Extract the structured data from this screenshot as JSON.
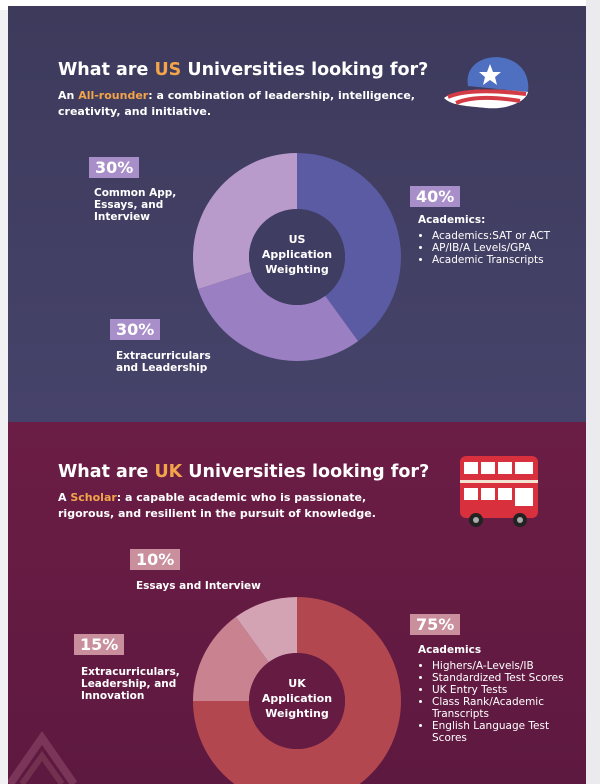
{
  "us": {
    "heading_pre": "What are ",
    "heading_hl": "US",
    "heading_post": " Universities looking for?",
    "lead_hl": "All-rounder",
    "lead_pre": "An ",
    "lead_post": ": a combination of leadership, intelligence, creativity, and initiative.",
    "center": [
      "US",
      "Application",
      "Weighting"
    ],
    "academics_heading": "Academics:",
    "academics_bullets": [
      "Academics:SAT or ACT",
      "AP/IB/A Levels/GPA",
      "Academic Transcripts"
    ],
    "common_app_label": "Common App, Essays, and Interview",
    "extracurricular_label": "Extracurriculars and Leadership",
    "hat_icon": "baseball-cap-icon"
  },
  "uk": {
    "heading_pre": "What are ",
    "heading_hl": "UK",
    "heading_post": " Universities looking for?",
    "lead_pre": "A ",
    "lead_hl": "Scholar",
    "lead_post": ": a capable academic who is passionate, rigorous, and resilient in the pursuit of knowledge.",
    "center": [
      "UK",
      "Application",
      "Weighting"
    ],
    "academics_heading": "Academics",
    "academics_bullets": [
      "Highers/A-Levels/IB",
      "Standardized Test Scores",
      "UK Entry Tests",
      "Class Rank/Academic Transcripts",
      "English Language Test Scores"
    ],
    "essays_label": "Essays and Interview",
    "extracurricular_label": "Extracurriculars, Leadership, and Innovation",
    "bus_icon": "double-decker-bus-icon"
  },
  "colors": {
    "us_background": "#413e62",
    "uk_background": "#661b43",
    "highlight": "#f3a44a"
  },
  "chart_data": [
    {
      "type": "pie",
      "subtype": "donut",
      "title": "US Application Weighting",
      "categories": [
        "Academics",
        "Extracurriculars and Leadership",
        "Common App, Essays, and Interview"
      ],
      "values": [
        40,
        30,
        30
      ],
      "labels": [
        "40%",
        "30%",
        "30%"
      ],
      "colors": [
        "#5b5ba3",
        "#9b7fc3",
        "#b99bcb"
      ]
    },
    {
      "type": "pie",
      "subtype": "donut",
      "title": "UK Application Weighting",
      "categories": [
        "Academics",
        "Extracurriculars, Leadership, and Innovation",
        "Essays and Interview"
      ],
      "values": [
        75,
        15,
        10
      ],
      "labels": [
        "75%",
        "15%",
        "10%"
      ],
      "colors": [
        "#b3474f",
        "#c88290",
        "#d4a3b3"
      ]
    }
  ]
}
